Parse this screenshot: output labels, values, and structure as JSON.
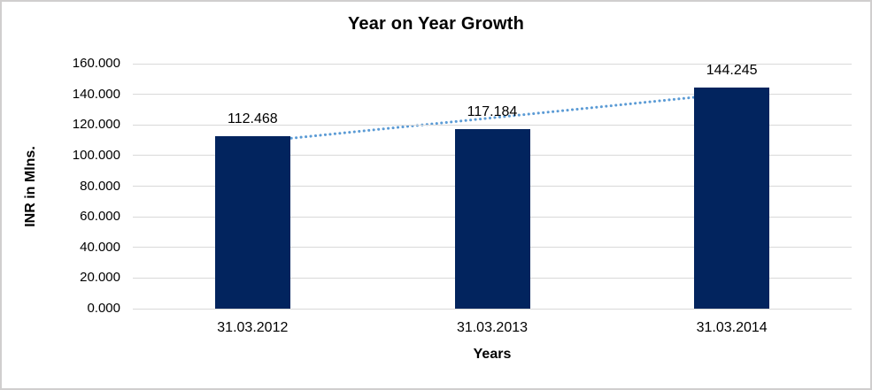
{
  "frame": {
    "border_color": "#d0cece",
    "background_color": "#ffffff"
  },
  "chart_data": {
    "type": "bar",
    "title": "Year on Year Growth",
    "categories": [
      "31.03.2012",
      "31.03.2013",
      "31.03.2014"
    ],
    "values": [
      112.468,
      117.184,
      144.245
    ],
    "data_labels": [
      "112.468",
      "117.184",
      "144.245"
    ],
    "xlabel": "Years",
    "ylabel": "INR in Mlns.",
    "ylim": [
      0,
      160
    ],
    "ytick_values": [
      160,
      140,
      120,
      100,
      80,
      60,
      40,
      20,
      0
    ],
    "ytick_labels": [
      "160.000",
      "140.000",
      "120.000",
      "100.000",
      "80.000",
      "60.000",
      "40.000",
      "20.000",
      "0.000"
    ],
    "grid": true,
    "legend": "none",
    "bar_color": "#02245e",
    "gridline_color": "#d9d9d9",
    "trendline": {
      "type": "linear",
      "style": "dotted",
      "color": "#5b9bd5"
    }
  }
}
